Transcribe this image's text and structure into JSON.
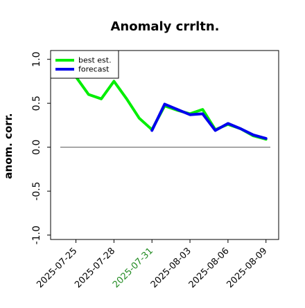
{
  "chart_data": {
    "type": "line",
    "title": "Anomaly crrltn.",
    "xlabel": "",
    "ylabel": "anom. corr.",
    "xlim": [
      "2025-07-23",
      "2025-08-10"
    ],
    "ylim": [
      -1.05,
      1.1
    ],
    "yticks": [
      -1.0,
      -0.5,
      0.0,
      0.5,
      1.0
    ],
    "yticklabels": [
      "-1.0",
      "-0.5",
      "0.0",
      "0.5",
      "1.0"
    ],
    "xticks": [
      "2025-07-25",
      "2025-07-28",
      "2025-07-31",
      "2025-08-03",
      "2025-08-06",
      "2025-08-09"
    ],
    "xticklabels": [
      "2025-07-25",
      "2025-07-28",
      "2025-07-31",
      "2025-08-03",
      "2025-08-06",
      "2025-08-09"
    ],
    "highlight_tick": "2025-07-31",
    "highlight_color": "#228b22",
    "reference_line": 0.0,
    "grid": false,
    "legend_position": "upper-left",
    "series": [
      {
        "name": "best est.",
        "color": "#00ee00",
        "x": [
          "2025-07-24",
          "2025-07-25",
          "2025-07-26",
          "2025-07-27",
          "2025-07-28",
          "2025-07-29",
          "2025-07-30",
          "2025-07-31",
          "2025-08-01",
          "2025-08-02",
          "2025-08-03",
          "2025-08-04",
          "2025-08-05",
          "2025-08-06",
          "2025-08-07",
          "2025-08-08",
          "2025-08-09"
        ],
        "values": [
          0.98,
          0.8,
          0.6,
          0.55,
          0.75,
          0.55,
          0.33,
          0.2,
          0.47,
          0.42,
          0.38,
          0.43,
          0.2,
          0.26,
          0.21,
          0.13,
          0.09
        ]
      },
      {
        "name": "forecast",
        "color": "#0000ee",
        "x": [
          "2025-07-31",
          "2025-08-01",
          "2025-08-02",
          "2025-08-03",
          "2025-08-04",
          "2025-08-05",
          "2025-08-06",
          "2025-08-07",
          "2025-08-08",
          "2025-08-09"
        ],
        "values": [
          0.19,
          0.49,
          0.43,
          0.37,
          0.38,
          0.19,
          0.27,
          0.21,
          0.14,
          0.1
        ]
      }
    ]
  }
}
